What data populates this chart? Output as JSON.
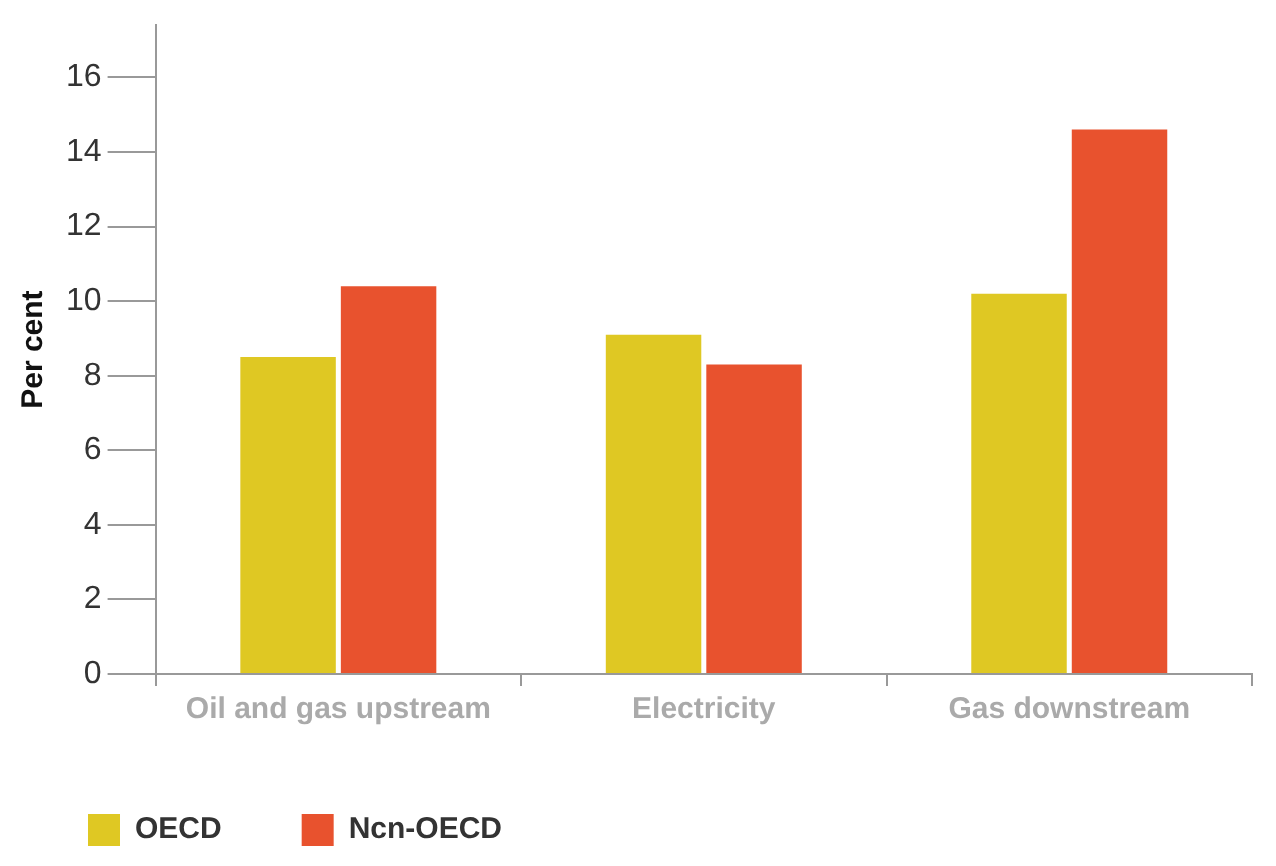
{
  "chart_data": {
    "type": "bar",
    "ylabel": "Per cent",
    "categories": [
      "Oil and gas upstream",
      "Electricity",
      "Gas downstream"
    ],
    "series": [
      {
        "name": "OECD",
        "color": "#dfc823",
        "values": [
          8.5,
          9.1,
          10.2
        ]
      },
      {
        "name": "Ncn-OECD",
        "color": "#e8522e",
        "values": [
          10.4,
          8.3,
          14.6
        ]
      }
    ],
    "ylim": [
      0,
      17.4
    ],
    "yticks": [
      0,
      2,
      4,
      6,
      8,
      10,
      12,
      14,
      16
    ],
    "grid": false,
    "legend": "bottom left"
  }
}
